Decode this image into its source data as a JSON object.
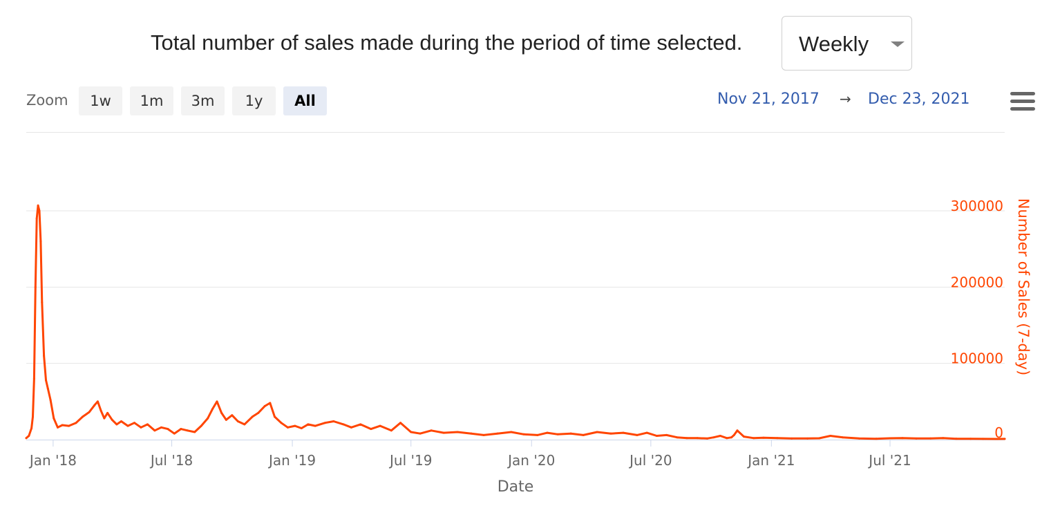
{
  "header": {
    "title": "Total number of sales made during the period of time selected.",
    "period_select": {
      "value": "Weekly"
    }
  },
  "toolbar": {
    "zoom_label": "Zoom",
    "zoom_buttons": [
      {
        "label": "1w",
        "active": false
      },
      {
        "label": "1m",
        "active": false
      },
      {
        "label": "3m",
        "active": false
      },
      {
        "label": "1y",
        "active": false
      },
      {
        "label": "All",
        "active": true
      }
    ],
    "range_from": "Nov 21, 2017",
    "range_arrow": "→",
    "range_to": "Dec 23, 2021",
    "menu_icon": "hamburger-menu-icon"
  },
  "colors": {
    "series": "#ff4500",
    "grid": "#e6e6e6",
    "range_text": "#335cad",
    "active_zoom_bg": "#e6ebf5"
  },
  "chart_data": {
    "type": "line",
    "title": "",
    "xlabel": "Date",
    "ylabel": "Number of Sales (7-day)",
    "y_axis_side": "right",
    "xlim": [
      "2017-11-21",
      "2021-12-23"
    ],
    "ylim": [
      0,
      310000
    ],
    "yticks": [
      0,
      100000,
      200000,
      300000
    ],
    "ytick_labels": [
      "0",
      "100000",
      "200000",
      "300000"
    ],
    "xticks": [
      "2018-01-01",
      "2018-07-01",
      "2019-01-01",
      "2019-07-01",
      "2020-01-01",
      "2020-07-01",
      "2021-01-01",
      "2021-07-01"
    ],
    "xtick_labels": [
      "Jan '18",
      "Jul '18",
      "Jan '19",
      "Jul '19",
      "Jan '20",
      "Jul '20",
      "Jan '21",
      "Jul '21"
    ],
    "grid": true,
    "legend": "none",
    "series": [
      {
        "color": "#ff4500",
        "x": [
          "2017-11-21",
          "2017-11-25",
          "2017-11-29",
          "2017-12-01",
          "2017-12-03",
          "2017-12-05",
          "2017-12-07",
          "2017-12-09",
          "2017-12-11",
          "2017-12-13",
          "2017-12-15",
          "2017-12-18",
          "2017-12-21",
          "2017-12-24",
          "2017-12-28",
          "2018-01-02",
          "2018-01-08",
          "2018-01-15",
          "2018-01-25",
          "2018-02-05",
          "2018-02-15",
          "2018-02-25",
          "2018-03-05",
          "2018-03-10",
          "2018-03-15",
          "2018-03-20",
          "2018-03-25",
          "2018-04-01",
          "2018-04-08",
          "2018-04-15",
          "2018-04-25",
          "2018-05-05",
          "2018-05-15",
          "2018-05-25",
          "2018-06-05",
          "2018-06-15",
          "2018-06-25",
          "2018-07-05",
          "2018-07-15",
          "2018-07-25",
          "2018-08-05",
          "2018-08-15",
          "2018-08-25",
          "2018-09-01",
          "2018-09-08",
          "2018-09-15",
          "2018-09-22",
          "2018-10-01",
          "2018-10-10",
          "2018-10-20",
          "2018-11-01",
          "2018-11-10",
          "2018-11-20",
          "2018-11-28",
          "2018-12-05",
          "2018-12-15",
          "2018-12-25",
          "2019-01-05",
          "2019-01-15",
          "2019-01-25",
          "2019-02-05",
          "2019-02-20",
          "2019-03-05",
          "2019-03-20",
          "2019-04-01",
          "2019-04-15",
          "2019-05-01",
          "2019-05-15",
          "2019-06-01",
          "2019-06-15",
          "2019-07-01",
          "2019-07-15",
          "2019-08-01",
          "2019-08-20",
          "2019-09-10",
          "2019-10-01",
          "2019-10-20",
          "2019-11-10",
          "2019-12-01",
          "2019-12-20",
          "2020-01-10",
          "2020-01-25",
          "2020-02-10",
          "2020-03-01",
          "2020-03-20",
          "2020-04-10",
          "2020-05-01",
          "2020-05-20",
          "2020-06-10",
          "2020-06-25",
          "2020-07-10",
          "2020-07-25",
          "2020-08-10",
          "2020-08-25",
          "2020-09-10",
          "2020-09-25",
          "2020-10-05",
          "2020-10-15",
          "2020-10-25",
          "2020-11-01",
          "2020-11-05",
          "2020-11-10",
          "2020-11-20",
          "2020-12-05",
          "2020-12-20",
          "2021-01-10",
          "2021-02-01",
          "2021-02-25",
          "2021-03-15",
          "2021-04-01",
          "2021-04-20",
          "2021-05-15",
          "2021-06-10",
          "2021-07-01",
          "2021-07-20",
          "2021-08-10",
          "2021-09-01",
          "2021-09-20",
          "2021-10-10",
          "2021-11-01",
          "2021-11-20",
          "2021-12-10",
          "2021-12-23"
        ],
        "values": [
          2000,
          5000,
          15000,
          30000,
          80000,
          200000,
          290000,
          307000,
          300000,
          260000,
          180000,
          110000,
          78000,
          67000,
          52000,
          28000,
          16000,
          19000,
          18000,
          22000,
          30000,
          36000,
          45000,
          50000,
          38000,
          28000,
          35000,
          26000,
          20000,
          24000,
          18000,
          22000,
          16000,
          20000,
          12000,
          16000,
          14000,
          8000,
          14000,
          12000,
          10000,
          18000,
          28000,
          40000,
          50000,
          35000,
          26000,
          32000,
          24000,
          20000,
          30000,
          35000,
          44000,
          48000,
          30000,
          22000,
          16000,
          18000,
          15000,
          20000,
          18000,
          22000,
          24000,
          20000,
          16000,
          20000,
          14000,
          18000,
          12000,
          22000,
          10000,
          8000,
          12000,
          9000,
          10000,
          8000,
          6000,
          8000,
          10000,
          7000,
          6000,
          9000,
          7000,
          8000,
          6000,
          10000,
          8000,
          9000,
          6000,
          9000,
          5000,
          6000,
          3000,
          2000,
          2000,
          1500,
          3000,
          5000,
          2000,
          3000,
          6000,
          12000,
          4000,
          2000,
          2500,
          2000,
          1500,
          1500,
          1800,
          5000,
          3000,
          1500,
          1200,
          1800,
          2000,
          1500,
          1600,
          2000,
          1200,
          1100,
          1000,
          900,
          1000
        ]
      }
    ]
  }
}
